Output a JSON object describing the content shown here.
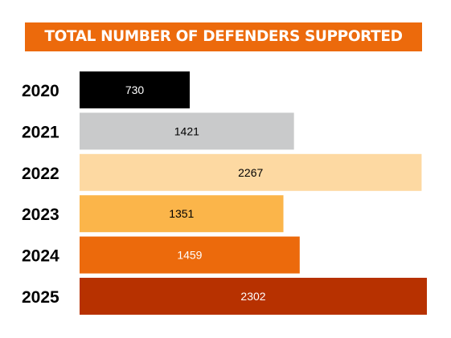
{
  "title": "TOTAL NUMBER OF DEFENDERS SUPPORTED",
  "colors": {
    "title_bg": "#ec6a0c",
    "title_text": "#ffffff",
    "year_label": "#000000",
    "bars": [
      "#000000",
      "#c9cacb",
      "#fdd9a2",
      "#fbb54a",
      "#ec6a0c",
      "#b73100"
    ],
    "value_labels": [
      "#ffffff",
      "#000000",
      "#000000",
      "#000000",
      "#ffffff",
      "#ffffff"
    ]
  },
  "chart_data": {
    "type": "bar",
    "orientation": "horizontal",
    "title": "TOTAL NUMBER OF DEFENDERS SUPPORTED",
    "categories": [
      "2020",
      "2021",
      "2022",
      "2023",
      "2024",
      "2025"
    ],
    "values": [
      730,
      1421,
      2267,
      1351,
      1459,
      2302
    ],
    "xlabel": "",
    "ylabel": "",
    "xlim": [
      0,
      2302
    ],
    "grid": false,
    "legend": "none",
    "data_labels": true
  }
}
